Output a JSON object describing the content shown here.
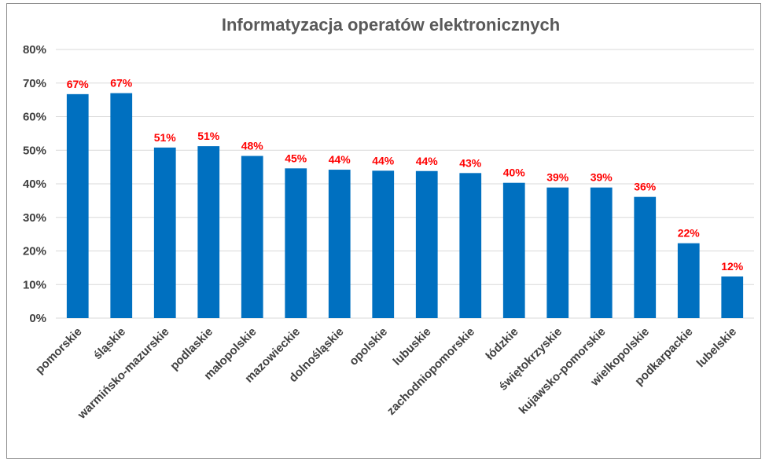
{
  "chart_data": {
    "type": "bar",
    "title": "Informatyzacja operatów elektronicznych",
    "xlabel": "",
    "ylabel": "",
    "ylim": [
      0,
      80
    ],
    "ytick_step": 10,
    "yticks": [
      "0%",
      "10%",
      "20%",
      "30%",
      "40%",
      "50%",
      "60%",
      "70%",
      "80%"
    ],
    "grid": true,
    "legend": "none",
    "categories": [
      "pomorskie",
      "śląskie",
      "warmińsko-mazurskie",
      "podlaskie",
      "małopolskie",
      "mazowieckie",
      "dolnośląskie",
      "opolskie",
      "lubuskie",
      "zachodniopomorskie",
      "łódzkie",
      "świętokrzyskie",
      "kujawsko-pomorskie",
      "wielkopolskie",
      "podkarpackie",
      "lubelskie"
    ],
    "values": [
      66.7,
      67.0,
      50.8,
      51.2,
      48.3,
      44.6,
      44.2,
      43.9,
      43.8,
      43.2,
      40.3,
      38.9,
      38.9,
      36.1,
      22.3,
      12.4
    ],
    "labels": [
      "67%",
      "67%",
      "51%",
      "51%",
      "48%",
      "45%",
      "44%",
      "44%",
      "44%",
      "43%",
      "40%",
      "39%",
      "39%",
      "36%",
      "22%",
      "12%"
    ],
    "bar_color": "#0070c0",
    "label_color": "#ff0000"
  }
}
